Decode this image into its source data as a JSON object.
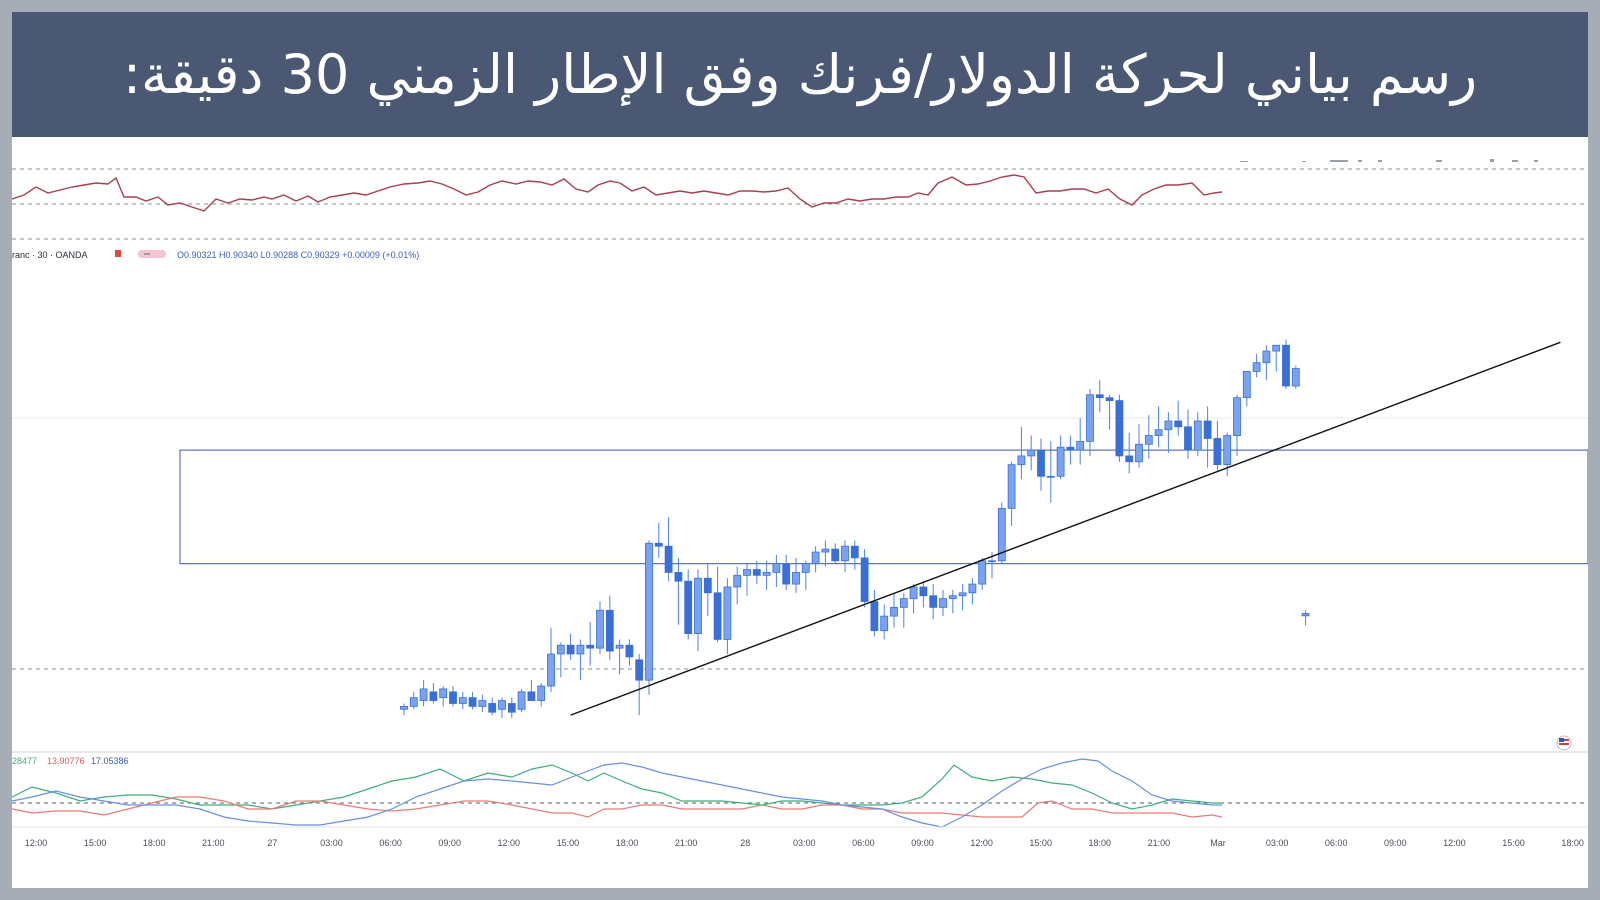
{
  "banner": {
    "title": "رسم بياني لحركة الدولار/فرنك وفق الإطار الزمني 30 دقيقة:"
  },
  "legend": {
    "symbol": "ranc · 30 · OANDA",
    "ohlc": "O0.90321 H0.90340 L0.90288 C0.90329 +0.00009 (+0.01%)"
  },
  "dmi_values": {
    "v1": "28477",
    "v2": "13.90776",
    "v3": "17.05386"
  },
  "colors": {
    "banner_bg": "#4a5873",
    "candle": "#4f82e0",
    "rsi": "#a73f4e",
    "dmi_plus": "#3fae7a",
    "dmi_minus": "#ea7a7a",
    "adx": "#6a8fe0"
  },
  "chart_data": {
    "type": "candlestick",
    "x_ticks": [
      "12:00",
      "15:00",
      "18:00",
      "21:00",
      "27",
      "03:00",
      "06:00",
      "09:00",
      "12:00",
      "15:00",
      "18:00",
      "21:00",
      "28",
      "03:00",
      "06:00",
      "09:00",
      "12:00",
      "15:00",
      "18:00",
      "21:00",
      "Mar",
      "03:00",
      "06:00",
      "09:00",
      "12:00",
      "15:00",
      "18:00"
    ],
    "candles": [
      [
        0.9,
        0.9002,
        0.8998,
        0.9001
      ],
      [
        0.9001,
        0.9006,
        0.9,
        0.9004
      ],
      [
        0.9003,
        0.901,
        0.9001,
        0.9007
      ],
      [
        0.9006,
        0.9009,
        0.9002,
        0.9003
      ],
      [
        0.9004,
        0.9008,
        0.9001,
        0.9007
      ],
      [
        0.9006,
        0.9008,
        0.9001,
        0.9002
      ],
      [
        0.9002,
        0.9006,
        0.9,
        0.9004
      ],
      [
        0.9004,
        0.9006,
        0.9,
        0.9001
      ],
      [
        0.9001,
        0.9005,
        0.8999,
        0.9003
      ],
      [
        0.9002,
        0.9004,
        0.8998,
        0.8999
      ],
      [
        0.9,
        0.9004,
        0.8997,
        0.9003
      ],
      [
        0.9002,
        0.9004,
        0.8997,
        0.8999
      ],
      [
        0.9,
        0.9007,
        0.8999,
        0.9006
      ],
      [
        0.9006,
        0.901,
        0.9003,
        0.9003
      ],
      [
        0.9003,
        0.9009,
        0.9001,
        0.9008
      ],
      [
        0.9008,
        0.9028,
        0.9006,
        0.9019
      ],
      [
        0.9019,
        0.9023,
        0.9011,
        0.9022
      ],
      [
        0.9022,
        0.9026,
        0.9017,
        0.9019
      ],
      [
        0.9019,
        0.9024,
        0.901,
        0.9022
      ],
      [
        0.9022,
        0.903,
        0.9015,
        0.9021
      ],
      [
        0.9021,
        0.9037,
        0.9019,
        0.9034
      ],
      [
        0.9034,
        0.9039,
        0.9017,
        0.902
      ],
      [
        0.9021,
        0.9024,
        0.9012,
        0.9022
      ],
      [
        0.9022,
        0.9024,
        0.9015,
        0.9018
      ],
      [
        0.9017,
        0.9019,
        0.8998,
        0.901
      ],
      [
        0.901,
        0.9058,
        0.9005,
        0.9057
      ],
      [
        0.9057,
        0.9064,
        0.9052,
        0.9056
      ],
      [
        0.9056,
        0.9066,
        0.9044,
        0.9047
      ],
      [
        0.9047,
        0.9052,
        0.9029,
        0.9044
      ],
      [
        0.9044,
        0.9048,
        0.9024,
        0.9026
      ],
      [
        0.9026,
        0.9048,
        0.902,
        0.9045
      ],
      [
        0.9045,
        0.905,
        0.9032,
        0.904
      ],
      [
        0.904,
        0.9049,
        0.9023,
        0.9024
      ],
      [
        0.9024,
        0.9045,
        0.9019,
        0.9042
      ],
      [
        0.9042,
        0.9049,
        0.9036,
        0.9046
      ],
      [
        0.9046,
        0.905,
        0.9039,
        0.9048
      ],
      [
        0.9048,
        0.9051,
        0.9043,
        0.9046
      ],
      [
        0.9046,
        0.9051,
        0.9041,
        0.9047
      ],
      [
        0.9047,
        0.9053,
        0.9042,
        0.905
      ],
      [
        0.905,
        0.9053,
        0.9041,
        0.9043
      ],
      [
        0.9043,
        0.9052,
        0.904,
        0.9047
      ],
      [
        0.9047,
        0.9051,
        0.9041,
        0.905
      ],
      [
        0.905,
        0.9056,
        0.9047,
        0.9054
      ],
      [
        0.9054,
        0.9058,
        0.9049,
        0.9055
      ],
      [
        0.9055,
        0.9057,
        0.905,
        0.9051
      ],
      [
        0.9051,
        0.9058,
        0.9047,
        0.9056
      ],
      [
        0.9056,
        0.9058,
        0.9048,
        0.9052
      ],
      [
        0.9052,
        0.9055,
        0.9035,
        0.9037
      ],
      [
        0.9037,
        0.9041,
        0.9025,
        0.9027
      ],
      [
        0.9027,
        0.9036,
        0.9024,
        0.9032
      ],
      [
        0.9032,
        0.904,
        0.9028,
        0.9035
      ],
      [
        0.9035,
        0.904,
        0.9028,
        0.9038
      ],
      [
        0.9038,
        0.9043,
        0.9033,
        0.9042
      ],
      [
        0.9042,
        0.9044,
        0.9035,
        0.9039
      ],
      [
        0.9039,
        0.9043,
        0.9031,
        0.9035
      ],
      [
        0.9035,
        0.9041,
        0.9032,
        0.9038
      ],
      [
        0.9038,
        0.9041,
        0.9033,
        0.9039
      ],
      [
        0.9039,
        0.9043,
        0.9034,
        0.904
      ],
      [
        0.904,
        0.9045,
        0.9036,
        0.9043
      ],
      [
        0.9043,
        0.9052,
        0.9041,
        0.9051
      ],
      [
        0.9051,
        0.9054,
        0.9045,
        0.9051
      ],
      [
        0.9051,
        0.9071,
        0.905,
        0.9069
      ],
      [
        0.9069,
        0.9085,
        0.9063,
        0.9084
      ],
      [
        0.9084,
        0.9097,
        0.9079,
        0.9087
      ],
      [
        0.9087,
        0.9094,
        0.9082,
        0.9089
      ],
      [
        0.9089,
        0.9093,
        0.9075,
        0.908
      ],
      [
        0.908,
        0.9092,
        0.9071,
        0.908
      ],
      [
        0.908,
        0.9094,
        0.9079,
        0.909
      ],
      [
        0.909,
        0.9094,
        0.9084,
        0.9089
      ],
      [
        0.9089,
        0.91,
        0.9084,
        0.9092
      ],
      [
        0.9092,
        0.911,
        0.9087,
        0.9108
      ],
      [
        0.9108,
        0.9113,
        0.9102,
        0.9107
      ],
      [
        0.9107,
        0.9108,
        0.9096,
        0.9106
      ],
      [
        0.9106,
        0.9108,
        0.9085,
        0.9087
      ],
      [
        0.9087,
        0.9095,
        0.9081,
        0.9085
      ],
      [
        0.9085,
        0.9098,
        0.9083,
        0.9091
      ],
      [
        0.9091,
        0.9101,
        0.9086,
        0.9094
      ],
      [
        0.9094,
        0.9104,
        0.909,
        0.9096
      ],
      [
        0.9096,
        0.9102,
        0.9088,
        0.9099
      ],
      [
        0.9099,
        0.9106,
        0.9094,
        0.9097
      ],
      [
        0.9097,
        0.9103,
        0.9086,
        0.9089
      ],
      [
        0.9089,
        0.9102,
        0.9087,
        0.9099
      ],
      [
        0.9099,
        0.9104,
        0.9083,
        0.9093
      ],
      [
        0.9093,
        0.9099,
        0.9082,
        0.9084
      ],
      [
        0.9084,
        0.9095,
        0.908,
        0.9094
      ],
      [
        0.9094,
        0.9108,
        0.9087,
        0.9107
      ],
      [
        0.9107,
        0.9116,
        0.9104,
        0.9116
      ],
      [
        0.9116,
        0.9122,
        0.9114,
        0.9119
      ],
      [
        0.9119,
        0.9125,
        0.9113,
        0.9123
      ],
      [
        0.9123,
        0.9125,
        0.9116,
        0.9125
      ],
      [
        0.9125,
        0.9127,
        0.911,
        0.9111
      ],
      [
        0.9111,
        0.9118,
        0.911,
        0.9117
      ],
      [
        0.90321,
        0.9034,
        0.90288,
        0.90329
      ]
    ],
    "zone": {
      "top": 0.9089,
      "bottom": 0.905
    },
    "trendline": {
      "from": [
        17.0,
        0.8998
      ],
      "to": [
        118.0,
        0.9126
      ]
    }
  }
}
